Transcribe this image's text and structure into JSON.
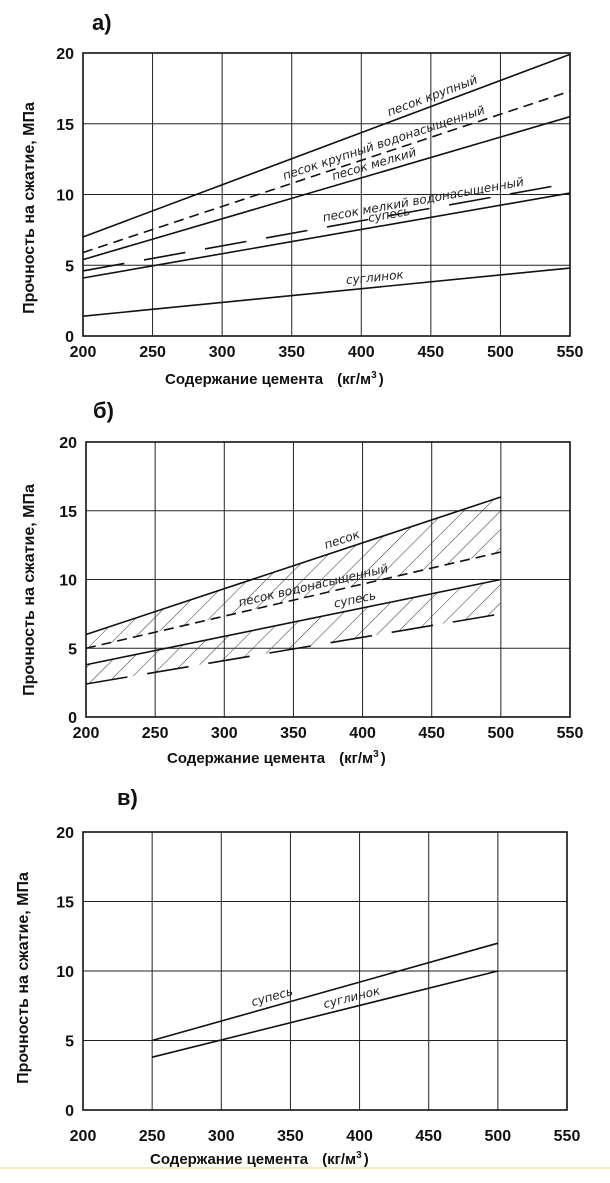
{
  "colors": {
    "line": "#111111",
    "background": "#ffffff",
    "bottom_rule": "#f3e6a0"
  },
  "chart_data": [
    {
      "panel_label": "а)",
      "type": "line",
      "xlabel": "Содержание цемента",
      "xunit_prefix": "(кг/м",
      "xunit_power": "3",
      "xunit_suffix": ")",
      "ylabel": "Прочность на сжатие, МПа",
      "xlim": [
        200,
        550
      ],
      "ylim": [
        0,
        20
      ],
      "xticks": [
        200,
        250,
        300,
        350,
        400,
        450,
        500,
        550
      ],
      "yticks": [
        0,
        5,
        10,
        15,
        20
      ],
      "grid": true,
      "series": [
        {
          "name": "песок крупный",
          "x": [
            200,
            550
          ],
          "y": [
            7.0,
            19.9
          ],
          "style": "solid"
        },
        {
          "name": "песок крупный водонасыщенный",
          "x": [
            200,
            550
          ],
          "y": [
            5.9,
            17.3
          ],
          "style": "dashed"
        },
        {
          "name": "песок мелкий",
          "x": [
            200,
            550
          ],
          "y": [
            5.4,
            15.5
          ],
          "style": "solid"
        },
        {
          "name": "песок мелкий водонасыщенный",
          "x": [
            200,
            550
          ],
          "y": [
            4.6,
            10.8
          ],
          "style": "longdash"
        },
        {
          "name": "супесь",
          "x": [
            200,
            550
          ],
          "y": [
            4.1,
            10.1
          ],
          "style": "solid"
        },
        {
          "name": "суглинок",
          "x": [
            200,
            550
          ],
          "y": [
            1.4,
            4.8
          ],
          "style": "solid"
        }
      ]
    },
    {
      "panel_label": "б)",
      "type": "line",
      "xlabel": "Содержание цемента",
      "xunit_prefix": "(кг/м",
      "xunit_power": "3",
      "xunit_suffix": ")",
      "ylabel": "Прочность на сжатие, МПа",
      "xlim": [
        200,
        550
      ],
      "ylim": [
        0,
        20
      ],
      "xticks": [
        200,
        250,
        300,
        350,
        400,
        450,
        500,
        550
      ],
      "yticks": [
        0,
        5,
        10,
        15,
        20
      ],
      "grid": true,
      "series": [
        {
          "name": "песок",
          "x": [
            200,
            500
          ],
          "y": [
            6.0,
            16.0
          ],
          "style": "solid"
        },
        {
          "name": "песок водонасыщенный",
          "x": [
            200,
            500
          ],
          "y": [
            5.0,
            12.0
          ],
          "style": "dashed"
        },
        {
          "name": "супесь",
          "x": [
            200,
            500
          ],
          "y": [
            3.8,
            10.0
          ],
          "style": "solid"
        },
        {
          "name": "",
          "x": [
            200,
            500
          ],
          "y": [
            2.4,
            7.5
          ],
          "style": "longdash"
        }
      ],
      "hatched_bands": [
        [
          "песок",
          "песок водонасыщенный"
        ],
        [
          "супесь",
          ""
        ]
      ]
    },
    {
      "panel_label": "в)",
      "type": "line",
      "xlabel": "Содержание цемента",
      "xunit_prefix": "(кг/м",
      "xunit_power": "3",
      "xunit_suffix": ")",
      "ylabel": "Прочность на сжатие, МПа",
      "xlim": [
        200,
        550
      ],
      "ylim": [
        0,
        20
      ],
      "xticks": [
        200,
        250,
        300,
        350,
        400,
        450,
        500,
        550
      ],
      "yticks": [
        0,
        5,
        10,
        15,
        20
      ],
      "grid": true,
      "series": [
        {
          "name": "супесь",
          "x": [
            250,
            500
          ],
          "y": [
            5.0,
            12.0
          ],
          "style": "solid"
        },
        {
          "name": "суглинок",
          "x": [
            250,
            500
          ],
          "y": [
            3.8,
            10.0
          ],
          "style": "solid"
        }
      ]
    }
  ]
}
